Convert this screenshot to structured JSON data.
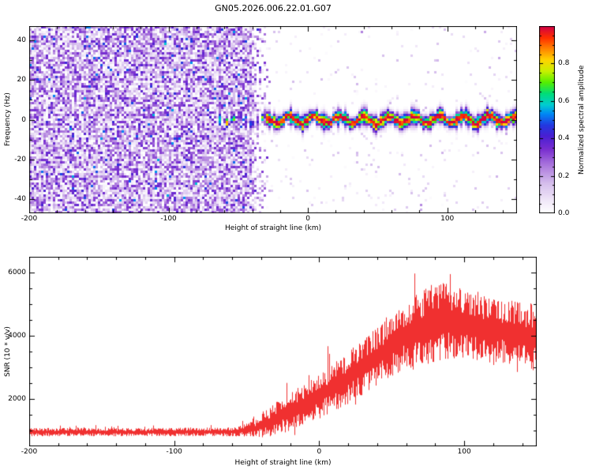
{
  "figure": {
    "title": "GN05.2026.006.22.01.G07",
    "background": "#ffffff",
    "frame_color": "#000000"
  },
  "chart_data": [
    {
      "type": "heatmap",
      "name": "spectrogram",
      "title": "GN05.2026.006.22.01.G07",
      "xlabel": "Height of straight line (km)",
      "ylabel": "Frequency (Hz)",
      "xlim": [
        -200,
        150
      ],
      "ylim": [
        -47,
        47
      ],
      "xtick_values": [
        -200,
        -100,
        0,
        100
      ],
      "xtick_labels": [
        "-200",
        "-100",
        "0",
        "100"
      ],
      "ytick_values": [
        -40,
        -20,
        0,
        20,
        40
      ],
      "ytick_labels": [
        "-40",
        "-20",
        "0",
        "20",
        "40"
      ],
      "colorbar": {
        "label": "Normalized spectral amplitude",
        "tick_values": [
          0,
          0.2,
          0.4,
          0.6,
          0.8
        ],
        "tick_labels": [
          "0.0",
          "0.2",
          "0.4",
          "0.6",
          "0.8"
        ],
        "range": [
          0,
          1
        ]
      },
      "features": {
        "noise_field": {
          "x_range_km": [
            -200,
            -27
          ],
          "fade_x_range_km": [
            -40,
            -26
          ],
          "amplitude_range": [
            0,
            0.5
          ],
          "description": "dense violet speckle noise across all frequencies, ends abruptly near -30 km"
        },
        "sparse_speckle": {
          "x_range_km": [
            -26,
            150
          ],
          "density": 0.04,
          "amplitude_max": 0.15
        },
        "signal_trace": {
          "x_range_km": [
            -78,
            150
          ],
          "center_frequency_hz": 0,
          "half_width_hz": 2.5,
          "intermittent_until_km": -30,
          "amplitude_range": [
            0.5,
            1.0
          ],
          "description": "narrow horizontal ridge near 0 Hz, red core with green and blue fringe"
        }
      },
      "colormap_stops": [
        {
          "v": 0.0,
          "color": "#ffffff"
        },
        {
          "v": 0.06,
          "color": "#f2eaf9"
        },
        {
          "v": 0.16,
          "color": "#d5bdec"
        },
        {
          "v": 0.26,
          "color": "#a873dc"
        },
        {
          "v": 0.34,
          "color": "#7a2fd0"
        },
        {
          "v": 0.41,
          "color": "#4b1fd2"
        },
        {
          "v": 0.47,
          "color": "#2338e0"
        },
        {
          "v": 0.53,
          "color": "#0087f5"
        },
        {
          "v": 0.58,
          "color": "#00cdd0"
        },
        {
          "v": 0.64,
          "color": "#00dd77"
        },
        {
          "v": 0.7,
          "color": "#55ee00"
        },
        {
          "v": 0.76,
          "color": "#c8f000"
        },
        {
          "v": 0.82,
          "color": "#ffd400"
        },
        {
          "v": 0.88,
          "color": "#ff8400"
        },
        {
          "v": 0.94,
          "color": "#ff2e00"
        },
        {
          "v": 1.0,
          "color": "#d10045"
        }
      ]
    },
    {
      "type": "line",
      "name": "snr",
      "xlabel": "Height of straight line (km)",
      "ylabel": "SNR (10 * v/v)",
      "xlim": [
        -200,
        150
      ],
      "ylim": [
        500,
        6500
      ],
      "xtick_values": [
        -200,
        -100,
        0,
        100
      ],
      "xtick_labels": [
        "-200",
        "-100",
        "0",
        "100"
      ],
      "ytick_values": [
        2000,
        4000,
        6000
      ],
      "ytick_labels": [
        "2000",
        "4000",
        "6000"
      ],
      "series": [
        {
          "name": "SNR",
          "color": "#f03030",
          "envelope_x_km": [
            -200,
            -120,
            -60,
            -45,
            -35,
            -25,
            -10,
            0,
            15,
            30,
            45,
            60,
            75,
            90,
            105,
            120,
            135,
            150
          ],
          "envelope_mean": [
            950,
            950,
            960,
            1050,
            1250,
            1500,
            1850,
            2100,
            2500,
            3000,
            3500,
            4000,
            4350,
            4450,
            4300,
            4150,
            4100,
            3900
          ],
          "envelope_spread": [
            130,
            130,
            140,
            250,
            450,
            600,
            650,
            700,
            800,
            900,
            950,
            1050,
            1250,
            1250,
            1100,
            1000,
            1000,
            1100
          ]
        }
      ]
    }
  ]
}
